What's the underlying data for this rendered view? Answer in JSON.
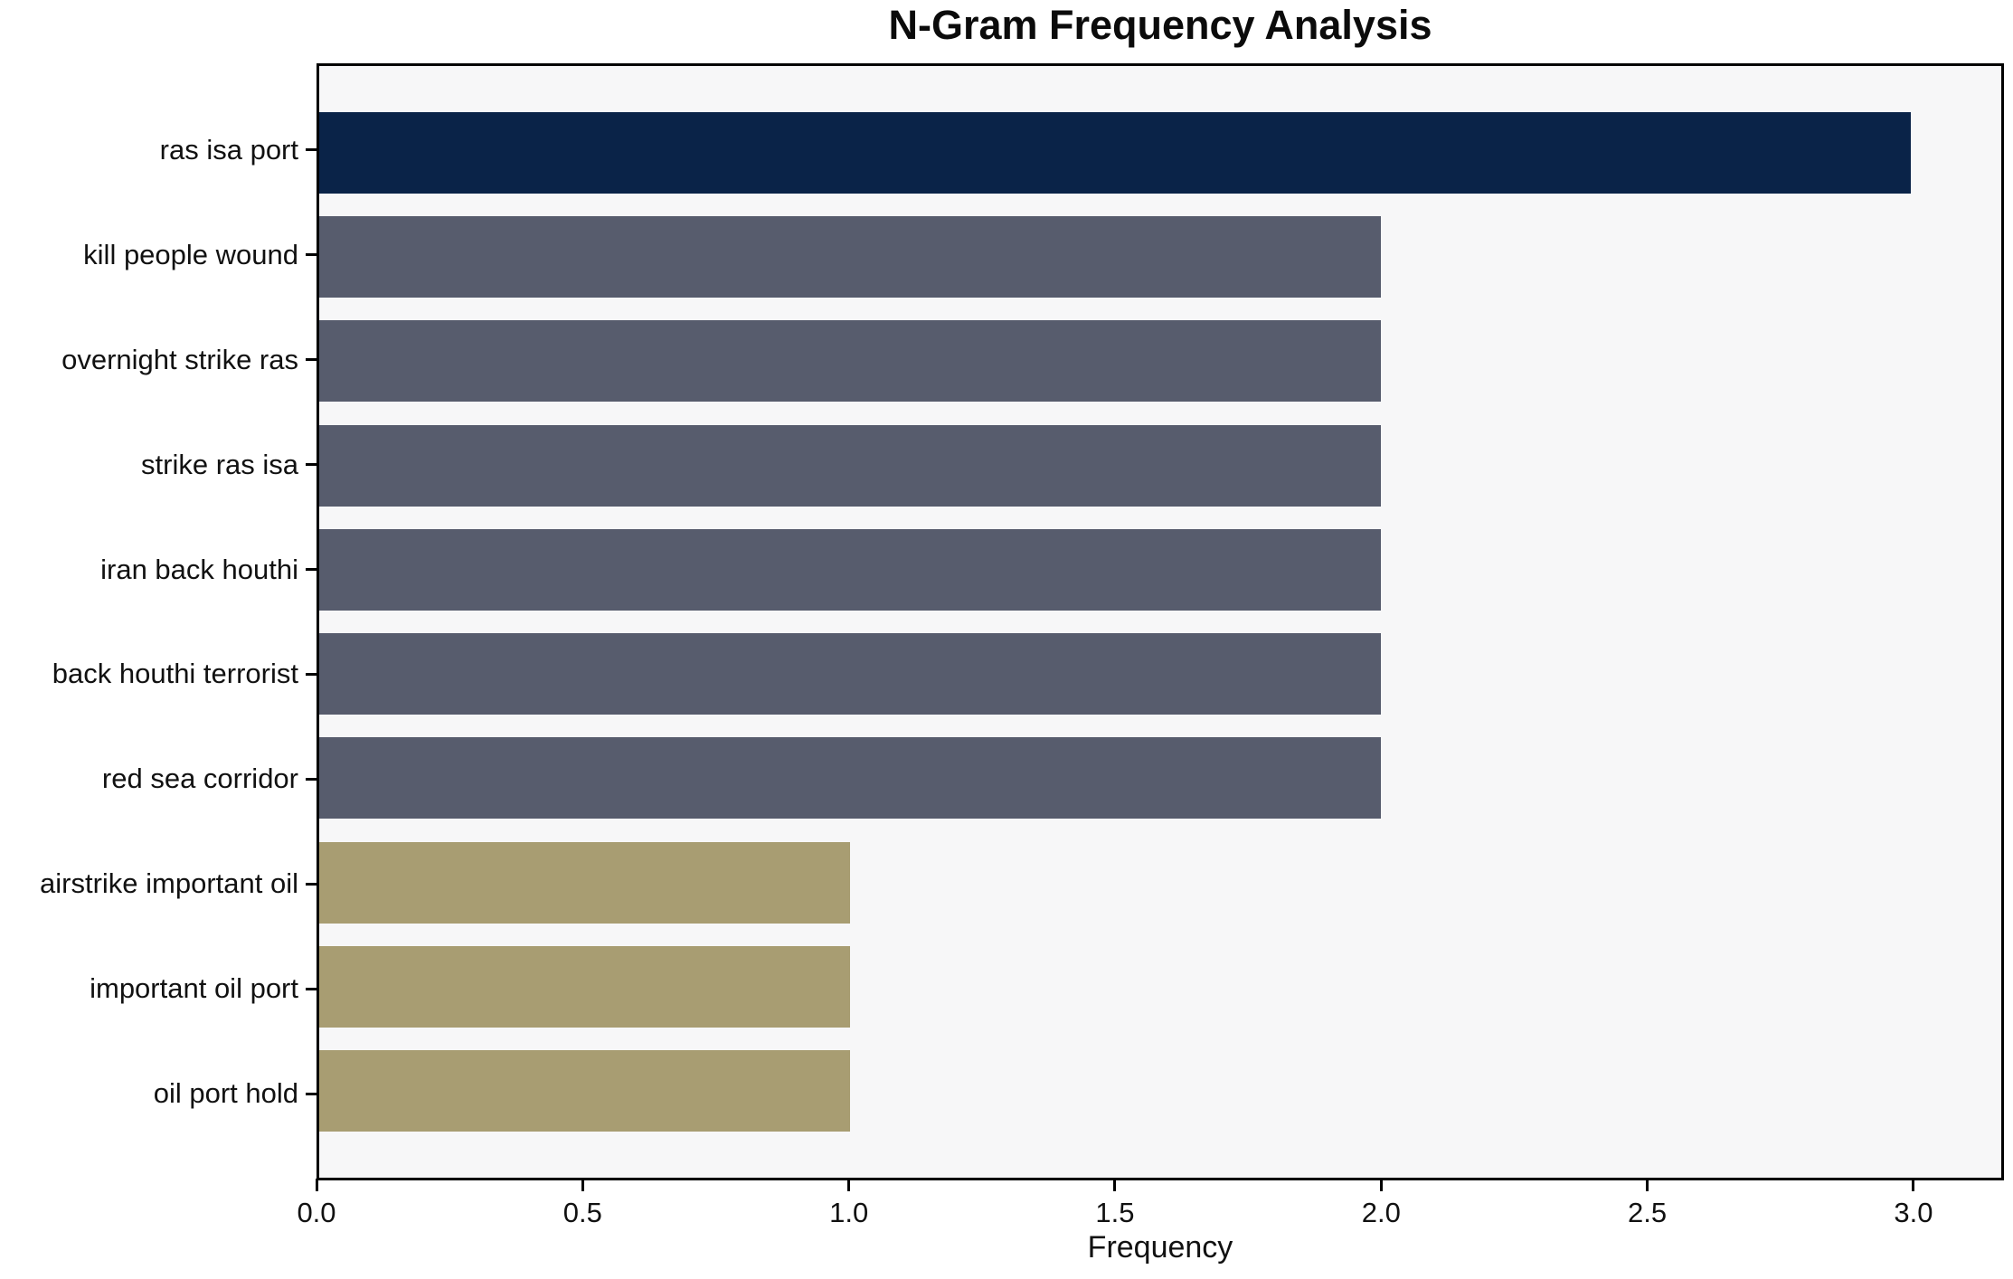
{
  "chart_data": {
    "type": "bar",
    "orientation": "horizontal",
    "title": "N-Gram Frequency Analysis",
    "xlabel": "Frequency",
    "ylabel": "",
    "categories": [
      "ras isa port",
      "kill people wound",
      "overnight strike ras",
      "strike ras isa",
      "iran back houthi",
      "back houthi terrorist",
      "red sea corridor",
      "airstrike important oil",
      "important oil port",
      "oil port hold"
    ],
    "values": [
      3,
      2,
      2,
      2,
      2,
      2,
      2,
      1,
      1,
      1
    ],
    "bar_colors": [
      "#0a2348",
      "#575c6d",
      "#575c6d",
      "#575c6d",
      "#575c6d",
      "#575c6d",
      "#575c6d",
      "#a89d72",
      "#a89d72",
      "#a89d72"
    ],
    "xlim": [
      0,
      3.17
    ],
    "xticks": [
      0.0,
      0.5,
      1.0,
      1.5,
      2.0,
      2.5,
      3.0
    ],
    "xtick_labels": [
      "0.0",
      "0.5",
      "1.0",
      "1.5",
      "2.0",
      "2.5",
      "3.0"
    ],
    "grid": false,
    "legend": "none",
    "colors": {
      "plot_background": "#f7f7f8",
      "figure_background": "#ffffff",
      "axis": "#000000",
      "text": "#111111",
      "bar_top": "#0a2348",
      "bar_mid": "#575c6d",
      "bar_low": "#a89d72"
    }
  }
}
